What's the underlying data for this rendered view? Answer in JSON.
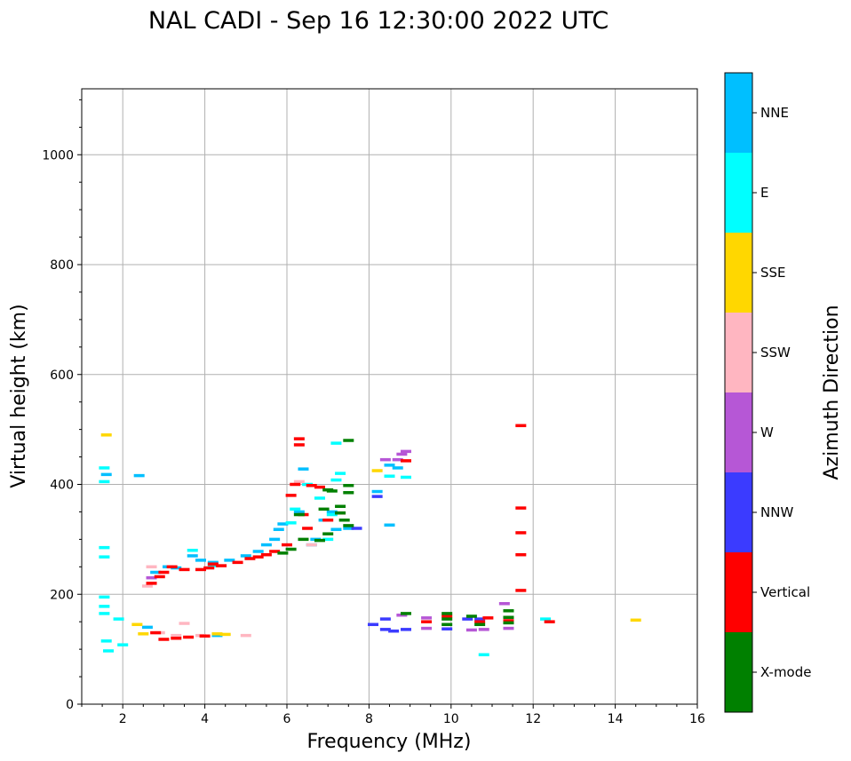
{
  "chart_data": {
    "type": "scatter",
    "title": "NAL CADI - Sep 16 12:30:00 2022 UTC",
    "xlabel": "Frequency (MHz)",
    "ylabel": "Virtual height (km)",
    "xlim": [
      1,
      16
    ],
    "ylim": [
      0,
      1120
    ],
    "x_ticks": [
      2,
      4,
      6,
      8,
      10,
      12,
      14,
      16
    ],
    "y_ticks": [
      0,
      200,
      400,
      600,
      800,
      1000
    ],
    "grid": true,
    "colorbar": {
      "label": "Azimuth Direction",
      "categories": [
        {
          "name": "X-mode",
          "color": "#008000"
        },
        {
          "name": "Vertical",
          "color": "#ff0000"
        },
        {
          "name": "NNW",
          "color": "#3b3bff"
        },
        {
          "name": "W",
          "color": "#b657d6"
        },
        {
          "name": "SSW",
          "color": "#ffb6c1"
        },
        {
          "name": "SSE",
          "color": "#ffd700"
        },
        {
          "name": "E",
          "color": "#00ffff"
        },
        {
          "name": "NNE",
          "color": "#00bfff"
        }
      ]
    },
    "series": [
      {
        "name": "NNE",
        "points": [
          [
            1.6,
            418
          ],
          [
            2.4,
            416
          ],
          [
            2.8,
            240
          ],
          [
            3.1,
            250
          ],
          [
            3.3,
            248
          ],
          [
            3.7,
            270
          ],
          [
            3.9,
            262
          ],
          [
            4.2,
            258
          ],
          [
            4.6,
            262
          ],
          [
            5.0,
            270
          ],
          [
            5.3,
            278
          ],
          [
            5.5,
            290
          ],
          [
            5.7,
            300
          ],
          [
            5.8,
            318
          ],
          [
            5.9,
            328
          ],
          [
            6.3,
            350
          ],
          [
            6.4,
            428
          ],
          [
            6.6,
            290
          ],
          [
            6.7,
            300
          ],
          [
            6.9,
            335
          ],
          [
            7.1,
            350
          ],
          [
            7.2,
            318
          ],
          [
            7.5,
            320
          ],
          [
            8.2,
            387
          ],
          [
            8.5,
            435
          ],
          [
            8.7,
            430
          ],
          [
            8.5,
            326
          ],
          [
            4.3,
            125
          ],
          [
            2.6,
            140
          ]
        ]
      },
      {
        "name": "E",
        "points": [
          [
            1.55,
            430
          ],
          [
            1.55,
            405
          ],
          [
            1.55,
            285
          ],
          [
            1.55,
            268
          ],
          [
            1.55,
            195
          ],
          [
            1.55,
            178
          ],
          [
            1.55,
            165
          ],
          [
            1.6,
            115
          ],
          [
            1.9,
            155
          ],
          [
            2.0,
            108
          ],
          [
            1.65,
            97
          ],
          [
            6.2,
            355
          ],
          [
            6.5,
            400
          ],
          [
            6.8,
            375
          ],
          [
            7.1,
            345
          ],
          [
            7.2,
            475
          ],
          [
            7.3,
            420
          ],
          [
            7.2,
            408
          ],
          [
            7.0,
            300
          ],
          [
            8.5,
            415
          ],
          [
            8.9,
            413
          ],
          [
            10.8,
            90
          ],
          [
            12.3,
            155
          ],
          [
            6.1,
            330
          ],
          [
            4.2,
            252
          ],
          [
            3.7,
            280
          ]
        ]
      },
      {
        "name": "SSE",
        "points": [
          [
            1.6,
            490
          ],
          [
            2.35,
            145
          ],
          [
            2.5,
            128
          ],
          [
            4.3,
            128
          ],
          [
            4.5,
            127
          ],
          [
            8.2,
            425
          ],
          [
            14.5,
            153
          ]
        ]
      },
      {
        "name": "SSW",
        "points": [
          [
            2.6,
            215
          ],
          [
            2.7,
            250
          ],
          [
            2.9,
            130
          ],
          [
            3.5,
            147
          ],
          [
            3.9,
            125
          ],
          [
            5.0,
            125
          ],
          [
            6.3,
            405
          ],
          [
            6.6,
            290
          ],
          [
            3.3,
            125
          ]
        ]
      },
      {
        "name": "W",
        "points": [
          [
            2.7,
            230
          ],
          [
            8.4,
            445
          ],
          [
            8.7,
            445
          ],
          [
            8.8,
            455
          ],
          [
            8.9,
            460
          ],
          [
            9.4,
            157
          ],
          [
            9.4,
            138
          ],
          [
            10.5,
            135
          ],
          [
            10.8,
            136
          ],
          [
            11.3,
            183
          ],
          [
            11.4,
            138
          ],
          [
            8.8,
            162
          ]
        ]
      },
      {
        "name": "NNW",
        "points": [
          [
            7.7,
            320
          ],
          [
            8.1,
            145
          ],
          [
            8.4,
            155
          ],
          [
            8.4,
            136
          ],
          [
            8.6,
            133
          ],
          [
            8.9,
            136
          ],
          [
            9.9,
            137
          ],
          [
            10.4,
            155
          ],
          [
            10.7,
            155
          ],
          [
            8.2,
            378
          ]
        ]
      },
      {
        "name": "Vertical",
        "points": [
          [
            2.7,
            220
          ],
          [
            2.9,
            232
          ],
          [
            3.0,
            240
          ],
          [
            3.2,
            250
          ],
          [
            3.5,
            245
          ],
          [
            3.9,
            245
          ],
          [
            4.1,
            248
          ],
          [
            4.4,
            252
          ],
          [
            4.8,
            258
          ],
          [
            5.1,
            265
          ],
          [
            5.3,
            268
          ],
          [
            5.5,
            272
          ],
          [
            5.7,
            278
          ],
          [
            6.0,
            290
          ],
          [
            6.1,
            380
          ],
          [
            6.2,
            400
          ],
          [
            6.3,
            483
          ],
          [
            6.3,
            472
          ],
          [
            6.4,
            345
          ],
          [
            6.6,
            398
          ],
          [
            6.8,
            395
          ],
          [
            6.5,
            320
          ],
          [
            7.0,
            335
          ],
          [
            7.3,
            348
          ],
          [
            3.0,
            118
          ],
          [
            3.3,
            120
          ],
          [
            3.6,
            122
          ],
          [
            4.0,
            124
          ],
          [
            2.8,
            130
          ],
          [
            9.9,
            160
          ],
          [
            10.7,
            150
          ],
          [
            11.4,
            152
          ],
          [
            11.7,
            507
          ],
          [
            11.7,
            357
          ],
          [
            11.7,
            312
          ],
          [
            11.7,
            272
          ],
          [
            11.7,
            207
          ],
          [
            12.4,
            150
          ],
          [
            8.9,
            443
          ],
          [
            9.4,
            150
          ],
          [
            10.9,
            157
          ],
          [
            4.2,
            255
          ]
        ]
      },
      {
        "name": "X-mode",
        "points": [
          [
            5.9,
            275
          ],
          [
            6.1,
            282
          ],
          [
            6.4,
            300
          ],
          [
            6.8,
            298
          ],
          [
            7.0,
            310
          ],
          [
            7.1,
            388
          ],
          [
            7.3,
            360
          ],
          [
            7.3,
            348
          ],
          [
            7.4,
            335
          ],
          [
            7.5,
            325
          ],
          [
            7.5,
            398
          ],
          [
            7.5,
            385
          ],
          [
            7.5,
            480
          ],
          [
            7.0,
            390
          ],
          [
            8.9,
            165
          ],
          [
            9.9,
            165
          ],
          [
            9.9,
            155
          ],
          [
            9.9,
            145
          ],
          [
            10.5,
            160
          ],
          [
            10.7,
            145
          ],
          [
            11.4,
            170
          ],
          [
            11.4,
            158
          ],
          [
            11.4,
            148
          ],
          [
            6.9,
            355
          ],
          [
            6.3,
            345
          ]
        ]
      }
    ]
  }
}
